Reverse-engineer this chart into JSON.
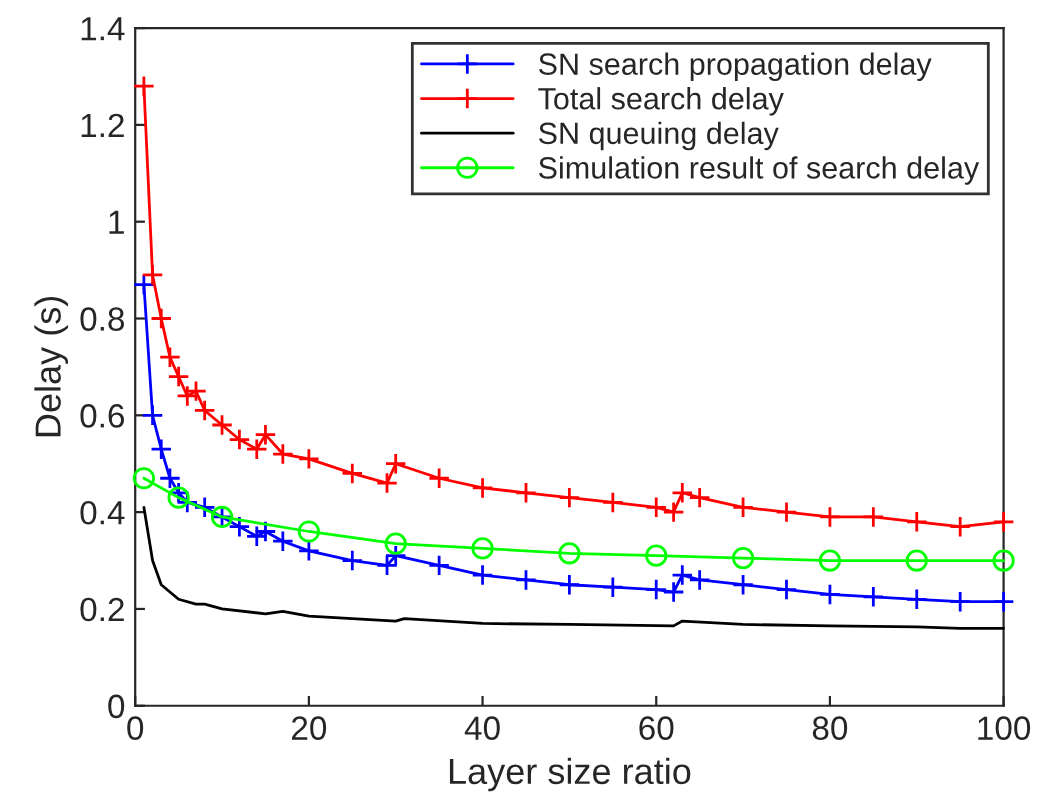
{
  "chart_data": {
    "type": "line",
    "xlabel": "Layer size ratio",
    "ylabel": "Delay (s)",
    "xlim": [
      0,
      100
    ],
    "ylim": [
      0,
      1.4
    ],
    "xticks": [
      0,
      20,
      40,
      60,
      80,
      100
    ],
    "yticks": [
      0,
      0.2,
      0.4,
      0.6,
      0.8,
      1,
      1.2,
      1.4
    ],
    "grid": false,
    "legend": "top right",
    "series": [
      {
        "name": "SN search propagation delay",
        "color": "#0000ff",
        "marker": "cross",
        "x": [
          1,
          2,
          3,
          4,
          5,
          6,
          8,
          10,
          12,
          14,
          15,
          17,
          20,
          25,
          29,
          30,
          35,
          40,
          45,
          50,
          55,
          60,
          62,
          63,
          65,
          70,
          75,
          80,
          85,
          90,
          95,
          100
        ],
        "values": [
          0.87,
          0.6,
          0.53,
          0.47,
          0.44,
          0.42,
          0.41,
          0.39,
          0.37,
          0.35,
          0.36,
          0.34,
          0.32,
          0.3,
          0.29,
          0.31,
          0.29,
          0.27,
          0.26,
          0.25,
          0.245,
          0.24,
          0.235,
          0.27,
          0.26,
          0.25,
          0.24,
          0.23,
          0.225,
          0.22,
          0.215,
          0.215
        ]
      },
      {
        "name": "Total search delay",
        "color": "#ff0000",
        "marker": "cross",
        "x": [
          1,
          2,
          3,
          4,
          5,
          6,
          7,
          8,
          10,
          12,
          14,
          15,
          17,
          20,
          25,
          29,
          30,
          35,
          40,
          45,
          50,
          55,
          60,
          62,
          63,
          65,
          70,
          75,
          80,
          85,
          90,
          95,
          100
        ],
        "values": [
          1.28,
          0.89,
          0.8,
          0.72,
          0.68,
          0.64,
          0.65,
          0.61,
          0.58,
          0.55,
          0.53,
          0.56,
          0.52,
          0.51,
          0.48,
          0.46,
          0.5,
          0.47,
          0.45,
          0.44,
          0.43,
          0.42,
          0.41,
          0.4,
          0.44,
          0.43,
          0.41,
          0.4,
          0.39,
          0.39,
          0.38,
          0.37,
          0.38
        ]
      },
      {
        "name": "SN queuing delay",
        "color": "#000000",
        "marker": "none",
        "x": [
          1,
          2,
          3,
          5,
          7,
          8,
          10,
          15,
          17,
          20,
          25,
          30,
          31,
          40,
          50,
          62,
          63,
          70,
          80,
          90,
          95,
          100
        ],
        "values": [
          0.41,
          0.3,
          0.25,
          0.22,
          0.21,
          0.21,
          0.2,
          0.19,
          0.195,
          0.185,
          0.18,
          0.175,
          0.18,
          0.17,
          0.168,
          0.165,
          0.175,
          0.168,
          0.165,
          0.163,
          0.16,
          0.16
        ]
      },
      {
        "name": "Simulation result of search delay",
        "color": "#00ff00",
        "marker": "circle",
        "x": [
          1,
          5,
          10,
          20,
          30,
          40,
          50,
          60,
          70,
          80,
          90,
          100
        ],
        "values": [
          0.47,
          0.43,
          0.39,
          0.36,
          0.335,
          0.325,
          0.315,
          0.31,
          0.305,
          0.3,
          0.3,
          0.3
        ]
      }
    ]
  }
}
